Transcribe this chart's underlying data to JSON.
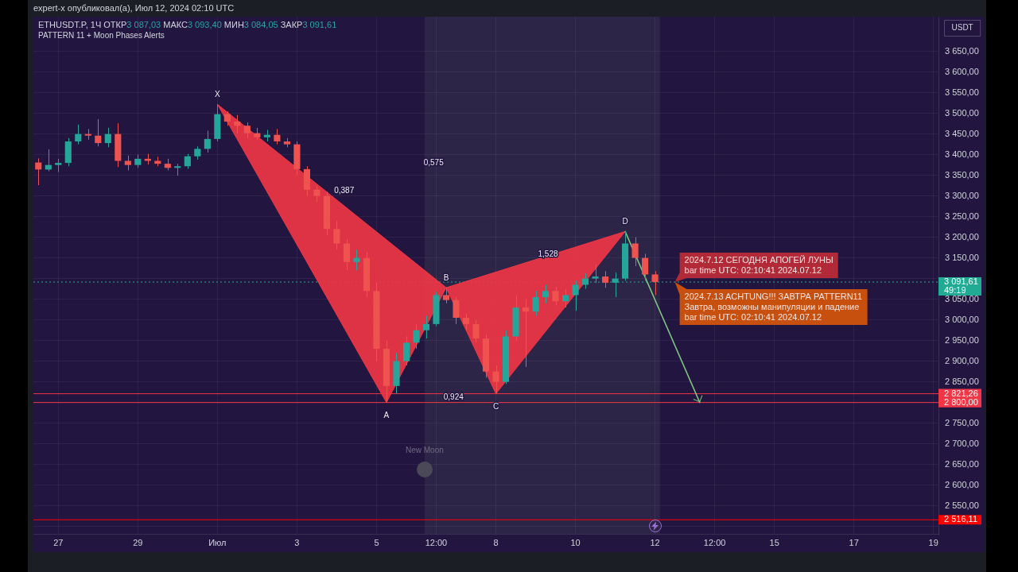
{
  "chart_data": {
    "type": "candlestick",
    "title": "ETHUSDT.P, 1Ч ОТКР3 087,03 МАКС3 093,40 МИН3 084,05 ЗАКР3 091,61",
    "subtitle": "PATTERN 11 + Moon Phases Alerts",
    "x": [
      "2024-06-26T12:00",
      "2024-06-26T18:00",
      "2024-06-27T00:00",
      "2024-06-27T06:00",
      "2024-06-27T12:00",
      "2024-06-27T18:00",
      "2024-06-28T00:00",
      "2024-06-28T06:00",
      "2024-06-28T12:00",
      "2024-06-28T18:00",
      "2024-06-29T00:00",
      "2024-06-29T06:00",
      "2024-06-29T12:00",
      "2024-06-29T18:00",
      "2024-06-30T00:00",
      "2024-06-30T06:00",
      "2024-06-30T12:00",
      "2024-06-30T18:00",
      "2024-07-01T00:00",
      "2024-07-01T06:00",
      "2024-07-01T12:00",
      "2024-07-01T18:00",
      "2024-07-02T00:00",
      "2024-07-02T06:00",
      "2024-07-02T12:00",
      "2024-07-02T18:00",
      "2024-07-03T00:00",
      "2024-07-03T06:00",
      "2024-07-03T12:00",
      "2024-07-03T18:00",
      "2024-07-04T00:00",
      "2024-07-04T06:00",
      "2024-07-04T12:00",
      "2024-07-04T18:00",
      "2024-07-05T00:00",
      "2024-07-05T06:00",
      "2024-07-05T12:00",
      "2024-07-05T18:00",
      "2024-07-06T00:00",
      "2024-07-06T06:00",
      "2024-07-06T12:00",
      "2024-07-06T18:00",
      "2024-07-07T00:00",
      "2024-07-07T06:00",
      "2024-07-07T12:00",
      "2024-07-07T18:00",
      "2024-07-08T00:00",
      "2024-07-08T06:00",
      "2024-07-08T12:00",
      "2024-07-08T18:00",
      "2024-07-09T00:00",
      "2024-07-09T06:00",
      "2024-07-09T12:00",
      "2024-07-09T18:00",
      "2024-07-10T00:00",
      "2024-07-10T06:00",
      "2024-07-10T12:00",
      "2024-07-10T18:00",
      "2024-07-11T00:00",
      "2024-07-11T06:00",
      "2024-07-11T12:00",
      "2024-07-11T18:00",
      "2024-07-12T00:00"
    ],
    "ohlc": [
      [
        3381,
        3391,
        3326,
        3364
      ],
      [
        3364,
        3413,
        3360,
        3375
      ],
      [
        3375,
        3390,
        3358,
        3380
      ],
      [
        3380,
        3440,
        3372,
        3432
      ],
      [
        3432,
        3473,
        3425,
        3450
      ],
      [
        3450,
        3462,
        3436,
        3446
      ],
      [
        3446,
        3486,
        3420,
        3428
      ],
      [
        3428,
        3465,
        3418,
        3450
      ],
      [
        3450,
        3476,
        3370,
        3385
      ],
      [
        3385,
        3398,
        3362,
        3375
      ],
      [
        3375,
        3400,
        3368,
        3390
      ],
      [
        3390,
        3402,
        3376,
        3385
      ],
      [
        3385,
        3395,
        3372,
        3378
      ],
      [
        3378,
        3390,
        3362,
        3368
      ],
      [
        3368,
        3378,
        3349,
        3372
      ],
      [
        3372,
        3402,
        3366,
        3396
      ],
      [
        3396,
        3420,
        3388,
        3414
      ],
      [
        3414,
        3458,
        3405,
        3438
      ],
      [
        3438,
        3522,
        3432,
        3498
      ],
      [
        3498,
        3505,
        3470,
        3480
      ],
      [
        3480,
        3496,
        3452,
        3470
      ],
      [
        3470,
        3478,
        3440,
        3452
      ],
      [
        3452,
        3465,
        3435,
        3442
      ],
      [
        3442,
        3460,
        3432,
        3448
      ],
      [
        3448,
        3462,
        3425,
        3432
      ],
      [
        3432,
        3440,
        3418,
        3425
      ],
      [
        3425,
        3432,
        3350,
        3365
      ],
      [
        3365,
        3372,
        3300,
        3315
      ],
      [
        3315,
        3325,
        3285,
        3300
      ],
      [
        3300,
        3310,
        3205,
        3220
      ],
      [
        3220,
        3240,
        3170,
        3185
      ],
      [
        3185,
        3195,
        3120,
        3140
      ],
      [
        3140,
        3170,
        3120,
        3150
      ],
      [
        3150,
        3165,
        3055,
        3070
      ],
      [
        3070,
        3090,
        2900,
        2930
      ],
      [
        2930,
        2950,
        2800,
        2840
      ],
      [
        2840,
        2920,
        2822,
        2900
      ],
      [
        2900,
        2960,
        2890,
        2945
      ],
      [
        2945,
        2990,
        2930,
        2975
      ],
      [
        2975,
        3010,
        2955,
        2990
      ],
      [
        2990,
        3068,
        2985,
        3060
      ],
      [
        3060,
        3078,
        3040,
        3048
      ],
      [
        3048,
        3055,
        2990,
        3005
      ],
      [
        3005,
        3015,
        2975,
        2990
      ],
      [
        2990,
        3000,
        2945,
        2955
      ],
      [
        2955,
        2965,
        2860,
        2875
      ],
      [
        2875,
        2890,
        2821.26,
        2850
      ],
      [
        2850,
        2975,
        2845,
        2960
      ],
      [
        2960,
        3060,
        2950,
        3030
      ],
      [
        3030,
        3050,
        2886,
        3020
      ],
      [
        3020,
        3070,
        3010,
        3055
      ],
      [
        3055,
        3085,
        3040,
        3070
      ],
      [
        3070,
        3080,
        3035,
        3045
      ],
      [
        3045,
        3075,
        3030,
        3060
      ],
      [
        3060,
        3095,
        3022,
        3085
      ],
      [
        3085,
        3112,
        3075,
        3100
      ],
      [
        3100,
        3135,
        3090,
        3105
      ],
      [
        3105,
        3118,
        3078,
        3090
      ],
      [
        3090,
        3115,
        3055,
        3100
      ],
      [
        3100,
        3214,
        3095,
        3185
      ],
      [
        3185,
        3200,
        3130,
        3150
      ],
      [
        3150,
        3160,
        3095,
        3110
      ],
      [
        3110,
        3118,
        3060,
        3091.61
      ]
    ],
    "colors": [
      "#ef5350",
      "#26a69a",
      "#26a69a",
      "#26a69a",
      "#26a69a",
      "#ef5350",
      "#ef5350",
      "#26a69a",
      "#ef5350",
      "#ef5350",
      "#26a69a",
      "#ef5350",
      "#ef5350",
      "#ef5350",
      "#26a69a",
      "#26a69a",
      "#26a69a",
      "#26a69a",
      "#26a69a",
      "#ef5350",
      "#ef5350",
      "#ef5350",
      "#ef5350",
      "#26a69a",
      "#ef5350",
      "#ef5350",
      "#ef5350",
      "#ef5350",
      "#ef5350",
      "#ef5350",
      "#ef5350",
      "#ef5350",
      "#26a69a",
      "#ef5350",
      "#ef5350",
      "#ef5350",
      "#26a69a",
      "#26a69a",
      "#26a69a",
      "#26a69a",
      "#26a69a",
      "#ef5350",
      "#ef5350",
      "#ef5350",
      "#ef5350",
      "#ef5350",
      "#ef5350",
      "#26a69a",
      "#26a69a",
      "#ef5350",
      "#26a69a",
      "#26a69a",
      "#ef5350",
      "#26a69a",
      "#26a69a",
      "#26a69a",
      "#26a69a",
      "#ef5350",
      "#26a69a",
      "#26a69a",
      "#ef5350",
      "#ef5350",
      "#ef5350"
    ],
    "series": [
      {
        "type": "area",
        "color": "#f23645",
        "x": [
          "2024-07-01T00:00",
          "2024-07-05T06:00",
          "2024-07-06T18:00",
          "2024-07-08T00:00",
          "2024-07-11T06:00"
        ],
        "values": [
          3522,
          2800,
          3078,
          2821.26,
          3214
        ]
      },
      {
        "type": "line",
        "color": "#81c784",
        "x": [
          "2024-07-11T06:00",
          "2024-07-13T03:00"
        ],
        "values": [
          3214,
          2800
        ]
      }
    ],
    "xlim": [
      "2024-06-26T09:00",
      "2024-07-19T03:00"
    ],
    "xticks": [
      {
        "value": "2024-06-27",
        "label": "27"
      },
      {
        "value": "2024-06-29",
        "label": "29"
      },
      {
        "value": "2024-07-01",
        "label": "Июл"
      },
      {
        "value": "2024-07-03",
        "label": "3"
      },
      {
        "value": "2024-07-05",
        "label": "5"
      },
      {
        "value": "2024-07-06T12:00",
        "label": "12:00"
      },
      {
        "value": "2024-07-08",
        "label": "8"
      },
      {
        "value": "2024-07-10",
        "label": "10"
      },
      {
        "value": "2024-07-12",
        "label": "12"
      },
      {
        "value": "2024-07-13T12:00",
        "label": "12:00"
      },
      {
        "value": "2024-07-15",
        "label": "15"
      },
      {
        "value": "2024-07-17",
        "label": "17"
      },
      {
        "value": "2024-07-19",
        "label": "19"
      }
    ],
    "ylim": [
      2482,
      3734
    ],
    "yticks": [
      {
        "value": 2500,
        "label": null
      },
      {
        "value": 2550,
        "label": "2 550,00"
      },
      {
        "value": 2600,
        "label": "2 600,00"
      },
      {
        "value": 2650,
        "label": "2 650,00"
      },
      {
        "value": 2700,
        "label": "2 700,00"
      },
      {
        "value": 2750,
        "label": "2 750,00"
      },
      {
        "value": 2800,
        "label": null
      },
      {
        "value": 2850,
        "label": "2 850,00"
      },
      {
        "value": 2900,
        "label": "2 900,00"
      },
      {
        "value": 2950,
        "label": "2 950,00"
      },
      {
        "value": 3000,
        "label": "3 000,00"
      },
      {
        "value": 3050,
        "label": "3 050,00"
      },
      {
        "value": 3100,
        "label": null
      },
      {
        "value": 3150,
        "label": "3 150,00"
      },
      {
        "value": 3200,
        "label": "3 200,00"
      },
      {
        "value": 3250,
        "label": "3 250,00"
      },
      {
        "value": 3300,
        "label": "3 300,00"
      },
      {
        "value": 3350,
        "label": "3 350,00"
      },
      {
        "value": 3400,
        "label": "3 400,00"
      },
      {
        "value": 3450,
        "label": "3 450,00"
      },
      {
        "value": 3500,
        "label": "3 500,00"
      },
      {
        "value": 3550,
        "label": "3 550,00"
      },
      {
        "value": 3600,
        "label": "3 600,00"
      },
      {
        "value": 3650,
        "label": "3 650,00"
      }
    ],
    "grid": true,
    "legend": false,
    "ref_lines": [
      {
        "axis": "y",
        "value": 3091.61,
        "label": "3 091,61\n49:19",
        "color": "#22ab94",
        "line_style": "dotted"
      },
      {
        "axis": "y",
        "value": 2821.26,
        "label": "2 821,26",
        "color": "#f23645"
      },
      {
        "axis": "y",
        "value": 2800,
        "label": "2 800,00",
        "color": "#f23645"
      },
      {
        "axis": "y",
        "value": 2516.11,
        "label": "2 516,11",
        "color": "#ff0000"
      }
    ],
    "bands": [
      {
        "axis": "x",
        "from": "2024-07-06T05:00",
        "to": "2024-07-12T03:00",
        "label": "New Moon",
        "color": "#2d2547"
      }
    ],
    "annotations": [
      "expert-x опубликовал(а), Июл 12, 2024 02:10 UTC",
      "USDT",
      {
        "text": "X",
        "x": "2024-07-01T00:00",
        "y": 3522
      },
      {
        "text": "A",
        "x": "2024-07-05T06:00",
        "y": 2800
      },
      {
        "text": "B",
        "x": "2024-07-06T18:00",
        "y": 3078
      },
      {
        "text": "C",
        "x": "2024-07-08T00:00",
        "y": 2821.26
      },
      {
        "text": "D",
        "x": "2024-07-11T06:00",
        "y": 3214
      },
      {
        "text": "0,387",
        "x": "2024-07-03T21:00",
        "y": 3300
      },
      {
        "text": "0,575",
        "x": "2024-07-06T03:00",
        "y": 3368
      },
      {
        "text": "1,528",
        "x": "2024-07-09T00:00",
        "y": 3146
      },
      {
        "text": "0,924",
        "x": "2024-07-06T15:00",
        "y": 2800
      },
      {
        "text": "2024.7.12 СЕГОДНЯ АПОГЕЙ ЛУНЫ\nbar time UTC: 02:10:41 2024.07.12",
        "x": "2024-07-12T12:00",
        "y": 3091.61
      },
      {
        "text": "2024.7.13 ACHTUNG!!! ЗАВТРА PATTERN11\nЗавтра, возможны манипуляции и падение\nbar time UTC: 02:10:41 2024.07.12",
        "x": "2024-07-12T12:00",
        "y": 3091.61
      }
    ]
  }
}
